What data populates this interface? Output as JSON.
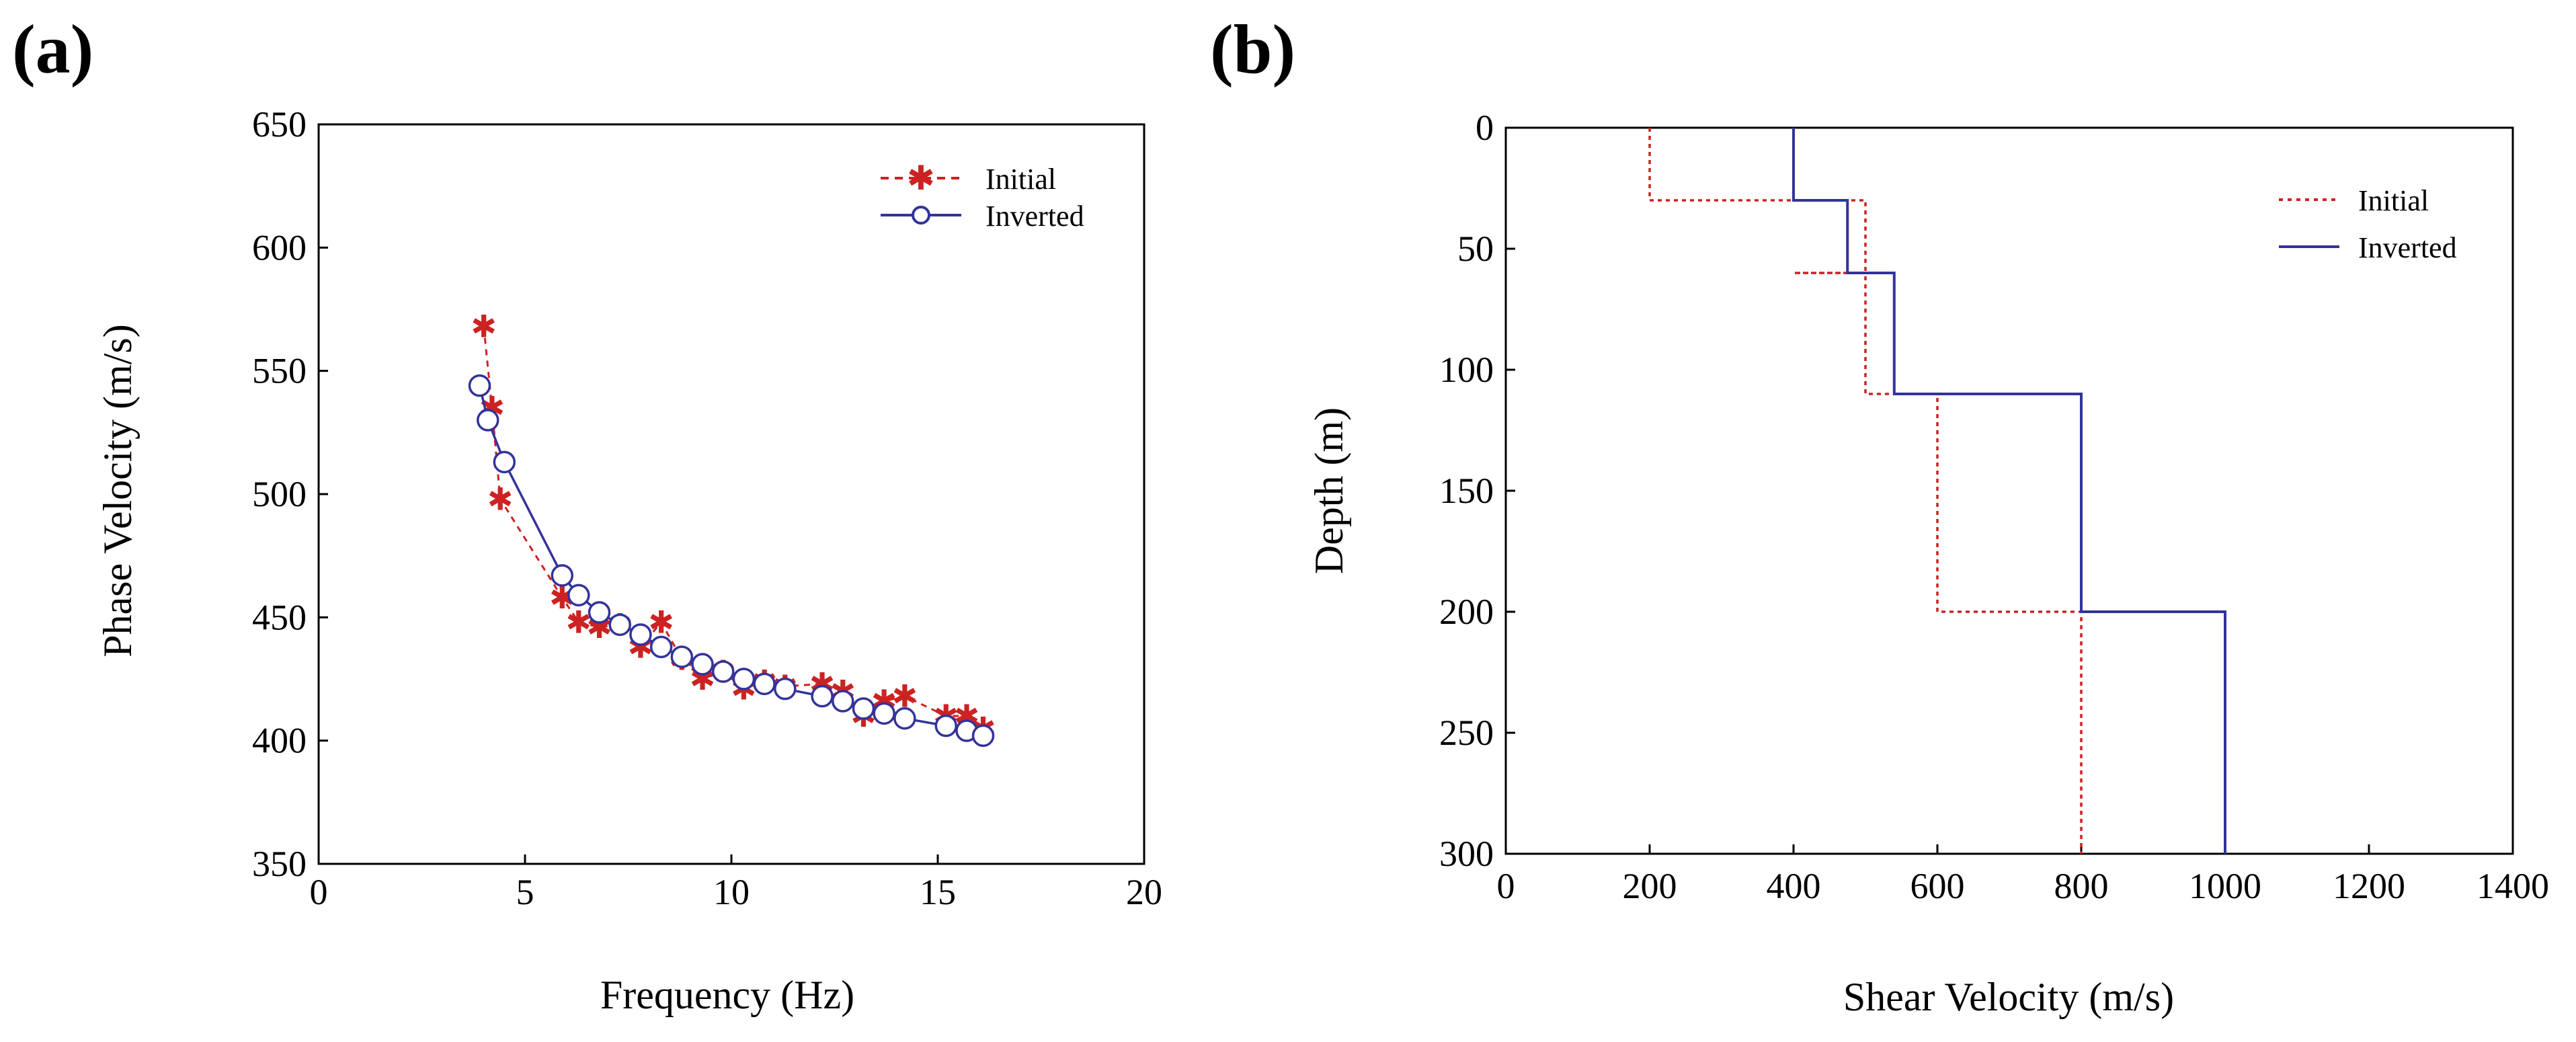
{
  "chart_data": [
    {
      "type": "line",
      "panel_label": "(a)",
      "title": "",
      "xlabel": "Frequency (Hz)",
      "ylabel": "Phase  Velocity (m/s)",
      "xlim": [
        0,
        20
      ],
      "ylim": [
        350,
        650
      ],
      "xticks": [
        "0",
        "5",
        "10",
        "15",
        "20"
      ],
      "yticks": [
        "350",
        "400",
        "450",
        "500",
        "550",
        "600",
        "650"
      ],
      "legend_position": "top-right",
      "colors": {
        "initial": "#cc2222",
        "inverted": "#33339a"
      },
      "series": [
        {
          "name": "Initial",
          "marker": "asterisk",
          "style": "dashed",
          "x": [
            4.0,
            4.2,
            4.4,
            5.9,
            6.3,
            6.8,
            7.3,
            7.8,
            8.3,
            8.8,
            9.3,
            9.8,
            10.3,
            10.8,
            11.3,
            12.2,
            12.7,
            13.2,
            13.7,
            14.2,
            15.2,
            15.7,
            16.1
          ],
          "y": [
            568,
            535,
            498,
            458,
            448,
            446,
            447,
            438,
            448,
            433,
            425,
            428,
            421,
            424,
            422,
            423,
            420,
            410,
            416,
            418,
            410,
            410,
            405
          ]
        },
        {
          "name": "Inverted",
          "marker": "circle",
          "style": "solid",
          "x": [
            3.9,
            4.1,
            4.5,
            5.9,
            6.3,
            6.8,
            7.3,
            7.8,
            8.3,
            8.8,
            9.3,
            9.8,
            10.3,
            10.8,
            11.3,
            12.2,
            12.7,
            13.2,
            13.7,
            14.2,
            15.2,
            15.7,
            16.1
          ],
          "y": [
            544,
            530,
            513,
            467,
            459,
            452,
            447,
            443,
            438,
            434,
            431,
            428,
            425,
            423,
            421,
            418,
            416,
            413,
            411,
            409,
            406,
            404,
            402
          ]
        }
      ]
    },
    {
      "type": "line",
      "panel_label": "(b)",
      "title": "",
      "xlabel": "Shear Velocity (m/s)",
      "ylabel": "Depth (m)",
      "xlim": [
        0,
        1400
      ],
      "ylim": [
        300,
        0
      ],
      "y_inverted": true,
      "xticks": [
        "0",
        "200",
        "400",
        "600",
        "800",
        "1000",
        "1200",
        "1400"
      ],
      "yticks": [
        "0",
        "50",
        "100",
        "150",
        "200",
        "250",
        "300"
      ],
      "legend_position": "top-right",
      "colors": {
        "initial": "#cc2222",
        "inverted": "#33339a"
      },
      "series": [
        {
          "name": "Initial",
          "style": "dotted",
          "x": [
            200,
            200,
            500,
            500,
            400,
            400,
            500,
            500,
            600,
            600,
            800,
            800
          ],
          "y": [
            0,
            30,
            30,
            60,
            60,
            60,
            60,
            110,
            110,
            200,
            200,
            300
          ]
        },
        {
          "name": "Inverted",
          "style": "solid",
          "x": [
            400,
            400,
            475,
            475,
            540,
            540,
            800,
            800,
            1000,
            1000
          ],
          "y": [
            0,
            30,
            30,
            60,
            60,
            110,
            110,
            200,
            200,
            300
          ]
        }
      ]
    }
  ]
}
